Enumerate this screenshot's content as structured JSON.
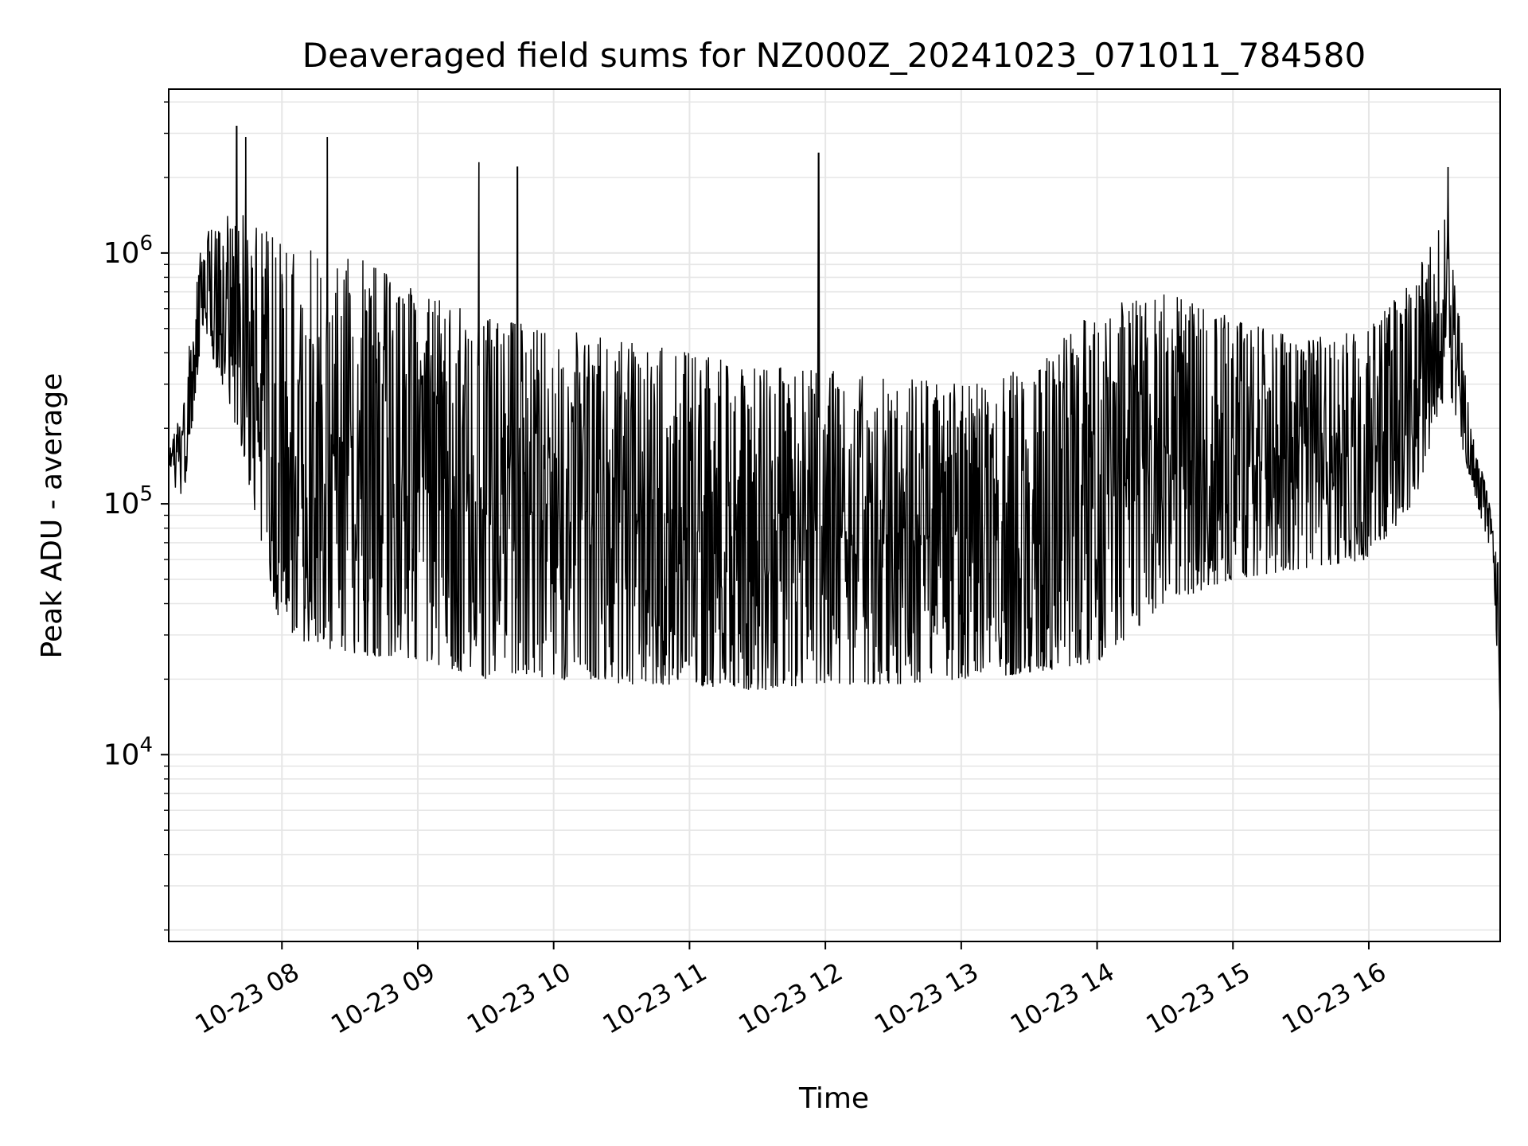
{
  "chart_data": {
    "type": "line",
    "title": "Deaveraged field sums for NZ000Z_20241023_071011_784580",
    "xlabel": "Time",
    "ylabel": "Peak ADU - average",
    "yscale": "log",
    "ylim": [
      1800,
      4500000
    ],
    "xlim": [
      "2024-10-23 07:10",
      "2024-10-23 16:58"
    ],
    "x_ticks": [
      {
        "at": "2024-10-23 08:00",
        "label": "10-23 08"
      },
      {
        "at": "2024-10-23 09:00",
        "label": "10-23 09"
      },
      {
        "at": "2024-10-23 10:00",
        "label": "10-23 10"
      },
      {
        "at": "2024-10-23 11:00",
        "label": "10-23 11"
      },
      {
        "at": "2024-10-23 12:00",
        "label": "10-23 12"
      },
      {
        "at": "2024-10-23 13:00",
        "label": "10-23 13"
      },
      {
        "at": "2024-10-23 14:00",
        "label": "10-23 14"
      },
      {
        "at": "2024-10-23 15:00",
        "label": "10-23 15"
      },
      {
        "at": "2024-10-23 16:00",
        "label": "10-23 16"
      }
    ],
    "y_ticks": [
      {
        "value": 10000,
        "base": "10",
        "exp": "4"
      },
      {
        "value": 100000,
        "base": "10",
        "exp": "5"
      },
      {
        "value": 1000000,
        "base": "10",
        "exp": "6"
      }
    ],
    "grid": true,
    "line_color": "#000000",
    "grid_color": "#e6e6e6",
    "envelope": {
      "description_points": [
        {
          "t": "2024-10-23 07:10",
          "low": 140000,
          "high": 160000
        },
        {
          "t": "2024-10-23 07:16",
          "low": 90000,
          "high": 250000
        },
        {
          "t": "2024-10-23 07:25",
          "low": 500000,
          "high": 1200000
        },
        {
          "t": "2024-10-23 07:40",
          "low": 200000,
          "high": 1500000
        },
        {
          "t": "2024-10-23 08:00",
          "low": 30000,
          "high": 1100000
        },
        {
          "t": "2024-10-23 08:30",
          "low": 25000,
          "high": 1000000
        },
        {
          "t": "2024-10-23 09:00",
          "low": 24000,
          "high": 700000
        },
        {
          "t": "2024-10-23 09:30",
          "low": 20000,
          "high": 550000
        },
        {
          "t": "2024-10-23 10:00",
          "low": 20000,
          "high": 500000
        },
        {
          "t": "2024-10-23 10:30",
          "low": 19000,
          "high": 450000
        },
        {
          "t": "2024-10-23 11:00",
          "low": 19000,
          "high": 400000
        },
        {
          "t": "2024-10-23 11:30",
          "low": 18000,
          "high": 350000
        },
        {
          "t": "2024-10-23 12:00",
          "low": 19000,
          "high": 350000
        },
        {
          "t": "2024-10-23 12:30",
          "low": 19000,
          "high": 320000
        },
        {
          "t": "2024-10-23 13:00",
          "low": 20000,
          "high": 300000
        },
        {
          "t": "2024-10-23 13:30",
          "low": 21000,
          "high": 350000
        },
        {
          "t": "2024-10-23 14:00",
          "low": 23000,
          "high": 600000
        },
        {
          "t": "2024-10-23 14:30",
          "low": 40000,
          "high": 700000
        },
        {
          "t": "2024-10-23 15:00",
          "low": 50000,
          "high": 550000
        },
        {
          "t": "2024-10-23 15:30",
          "low": 55000,
          "high": 450000
        },
        {
          "t": "2024-10-23 16:00",
          "low": 60000,
          "high": 500000
        },
        {
          "t": "2024-10-23 16:20",
          "low": 100000,
          "high": 800000
        },
        {
          "t": "2024-10-23 16:35",
          "low": 300000,
          "high": 1500000
        },
        {
          "t": "2024-10-23 16:45",
          "low": 120000,
          "high": 200000
        },
        {
          "t": "2024-10-23 16:55",
          "low": 60000,
          "high": 90000
        },
        {
          "t": "2024-10-23 16:58",
          "low": 12000,
          "high": 60000
        }
      ]
    },
    "spikes": [
      {
        "t": "2024-10-23 07:40",
        "value": 3200000
      },
      {
        "t": "2024-10-23 07:44",
        "value": 2900000
      },
      {
        "t": "2024-10-23 08:20",
        "value": 2900000
      },
      {
        "t": "2024-10-23 09:27",
        "value": 2300000
      },
      {
        "t": "2024-10-23 09:44",
        "value": 2200000
      },
      {
        "t": "2024-10-23 11:57",
        "value": 2500000
      },
      {
        "t": "2024-10-23 16:35",
        "value": 2200000
      }
    ]
  }
}
